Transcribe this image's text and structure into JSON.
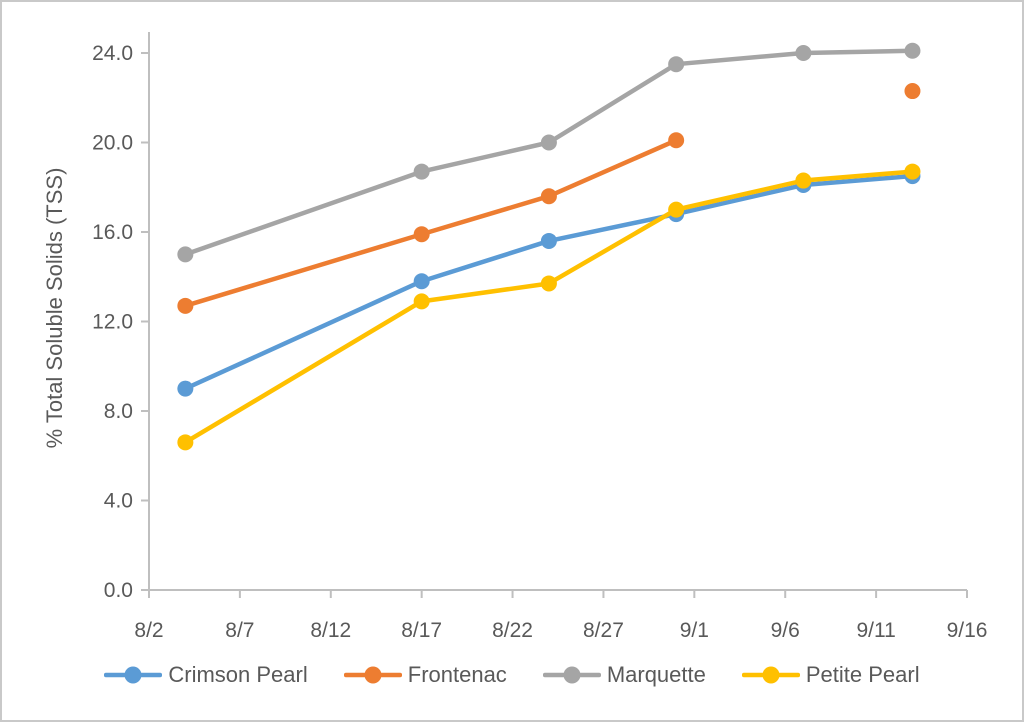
{
  "figure": {
    "background": "#ffffff",
    "border_color": "#c9c9c9",
    "text_color": "#595959",
    "axis_color": "#bfbfbf"
  },
  "chart_data": {
    "type": "line",
    "title": "",
    "xlabel": "",
    "ylabel": "% Total Soluble Solids (TSS)",
    "grid": false,
    "legend_position": "bottom",
    "ylim": [
      0,
      25
    ],
    "y_ticks": [
      0,
      4,
      8,
      12,
      16,
      20,
      24
    ],
    "y_tick_labels": [
      "0.0",
      "4.0",
      "8.0",
      "12.0",
      "16.0",
      "20.0",
      "24.0"
    ],
    "x_tick_days": [
      0,
      5,
      10,
      15,
      20,
      25,
      30,
      35,
      40,
      45
    ],
    "x_tick_labels": [
      "8/2",
      "8/7",
      "8/12",
      "8/17",
      "8/22",
      "8/27",
      "9/1",
      "9/6",
      "9/11",
      "9/16"
    ],
    "x_dates": [
      "8/4",
      "8/17",
      "8/24",
      "8/31",
      "9/7",
      "9/13"
    ],
    "x_days": [
      2,
      15,
      22,
      29,
      36,
      42
    ],
    "series": [
      {
        "name": "Crimson Pearl",
        "color": "#5b9bd5",
        "values": [
          9.0,
          13.8,
          15.6,
          16.8,
          18.1,
          18.5
        ]
      },
      {
        "name": "Frontenac",
        "color": "#ed7d31",
        "values": [
          12.7,
          15.9,
          17.6,
          20.1,
          null,
          22.3
        ]
      },
      {
        "name": "Marquette",
        "color": "#a5a5a5",
        "values": [
          15.0,
          18.7,
          20.0,
          23.5,
          24.0,
          24.1
        ]
      },
      {
        "name": "Petite Pearl",
        "color": "#ffc000",
        "values": [
          6.6,
          12.9,
          13.7,
          17.0,
          18.3,
          18.7
        ]
      }
    ]
  }
}
